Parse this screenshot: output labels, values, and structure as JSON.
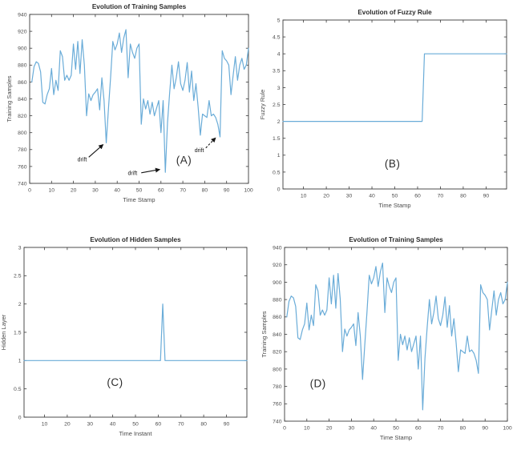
{
  "style": {
    "background": "#ffffff",
    "line_color": "#6aacd8",
    "frame_color": "#3a3a3a",
    "title_color": "#2b2b2b",
    "label_color": "#4a4a4a",
    "tick_color": "#4d4d4d",
    "annotation_color": "#141414"
  },
  "chart_data": [
    {
      "panel": "A",
      "type": "line",
      "title": "Evolution of Training Samples",
      "xlabel": "Time Stamp",
      "ylabel": "Training Samples",
      "xlim": [
        0,
        100
      ],
      "ylim": [
        740,
        940
      ],
      "xticks": [
        0,
        10,
        20,
        30,
        40,
        50,
        60,
        70,
        80,
        90,
        100
      ],
      "yticks": [
        740,
        760,
        780,
        800,
        820,
        840,
        860,
        880,
        900,
        920,
        940
      ],
      "x_start": 1,
      "y": [
        860,
        878,
        884,
        882,
        872,
        836,
        834,
        845,
        852,
        876,
        845,
        862,
        850,
        897,
        890,
        862,
        868,
        862,
        868,
        905,
        875,
        908,
        870,
        910,
        880,
        820,
        846,
        838,
        845,
        848,
        852,
        827,
        865,
        838,
        788,
        828,
        866,
        908,
        898,
        905,
        918,
        895,
        912,
        922,
        865,
        905,
        895,
        888,
        900,
        905,
        810,
        840,
        828,
        838,
        822,
        836,
        820,
        829,
        838,
        800,
        838,
        753,
        812,
        848,
        880,
        852,
        865,
        884,
        858,
        850,
        862,
        883,
        848,
        873,
        838,
        858,
        830,
        797,
        822,
        820,
        818,
        838,
        820,
        822,
        818,
        810,
        795,
        897,
        888,
        885,
        880,
        845,
        868,
        890,
        862,
        880,
        888,
        875,
        880,
        900
      ],
      "panel_label": {
        "text": "(A)",
        "x": 70.5,
        "y": 763
      },
      "annotations": [
        {
          "text": "drift",
          "text_x": 24,
          "text_y": 766,
          "from_x": 27,
          "from_y": 771,
          "to_x": 33.6,
          "to_y": 786,
          "line": "solid"
        },
        {
          "text": "drift",
          "text_x": 47,
          "text_y": 750,
          "from_x": 51,
          "from_y": 752.5,
          "to_x": 59.5,
          "to_y": 756.5,
          "line": "solid"
        },
        {
          "text": "drift",
          "text_x": 77.5,
          "text_y": 777,
          "from_x": 80.5,
          "from_y": 782,
          "to_x": 85,
          "to_y": 794,
          "line": "dashed"
        }
      ]
    },
    {
      "panel": "B",
      "type": "step",
      "title": "Evolution of Fuzzy Rule",
      "xlabel": "Time Stamp",
      "ylabel": "Fuzzy Rule",
      "xlim": [
        1,
        99
      ],
      "ylim": [
        0,
        5
      ],
      "xticks": [
        10,
        20,
        30,
        40,
        50,
        60,
        70,
        80,
        90
      ],
      "yticks": [
        0,
        0.5,
        1,
        1.5,
        2,
        2.5,
        3,
        3.5,
        4,
        4.5,
        5
      ],
      "segments": [
        {
          "x_start": 1,
          "x_end": 62,
          "y": 2
        },
        {
          "x_start": 63,
          "x_end": 99,
          "y": 4
        }
      ],
      "panel_label": {
        "text": "(B)",
        "x": 49,
        "y": 0.64
      },
      "annotations": []
    },
    {
      "panel": "C",
      "type": "spike",
      "title": "Evolution of Hidden Samples",
      "xlabel": "Time Instant",
      "ylabel": "Hidden Layer",
      "xlim": [
        1,
        99
      ],
      "ylim": [
        0,
        3
      ],
      "xticks": [
        10,
        20,
        30,
        40,
        50,
        60,
        70,
        80,
        90
      ],
      "yticks": [
        0,
        0.5,
        1,
        1.5,
        2,
        2.5,
        3
      ],
      "baseline": 1,
      "spike": {
        "x": 62,
        "y": 2
      },
      "panel_label": {
        "text": "(C)",
        "x": 41,
        "y": 0.55
      },
      "annotations": []
    },
    {
      "panel": "D",
      "type": "line",
      "title": "Evolution of Training Samples",
      "xlabel": "Time Stamp",
      "ylabel": "Training Samples",
      "xlim": [
        0,
        100
      ],
      "ylim": [
        740,
        940
      ],
      "xticks": [
        0,
        10,
        20,
        30,
        40,
        50,
        60,
        70,
        80,
        90,
        100
      ],
      "yticks": [
        740,
        760,
        780,
        800,
        820,
        840,
        860,
        880,
        900,
        920,
        940
      ],
      "x_start": 1,
      "y": [
        860,
        878,
        884,
        882,
        872,
        836,
        834,
        845,
        852,
        876,
        845,
        862,
        850,
        897,
        890,
        862,
        868,
        862,
        868,
        905,
        875,
        908,
        870,
        910,
        880,
        820,
        846,
        838,
        845,
        848,
        852,
        827,
        865,
        838,
        788,
        828,
        866,
        908,
        898,
        905,
        918,
        895,
        912,
        922,
        865,
        905,
        895,
        888,
        900,
        905,
        810,
        840,
        828,
        838,
        822,
        836,
        820,
        829,
        838,
        800,
        838,
        753,
        812,
        848,
        880,
        852,
        865,
        884,
        858,
        850,
        862,
        883,
        848,
        873,
        838,
        858,
        830,
        797,
        822,
        820,
        818,
        838,
        820,
        822,
        818,
        810,
        795,
        897,
        888,
        885,
        880,
        845,
        868,
        890,
        862,
        880,
        888,
        875,
        880,
        900
      ],
      "panel_label": {
        "text": "(D)",
        "x": 15,
        "y": 779
      },
      "annotations": []
    }
  ]
}
